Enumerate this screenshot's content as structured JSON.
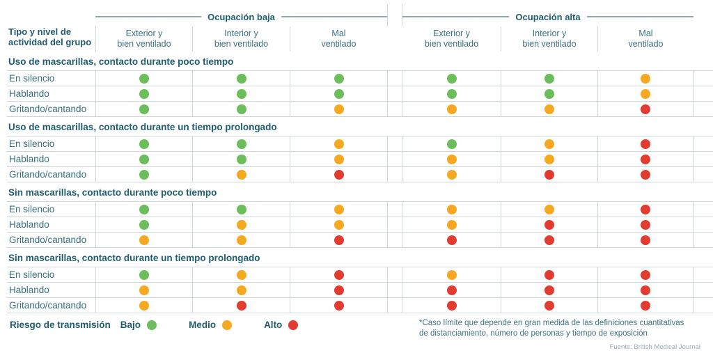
{
  "palette": {
    "teal": "#1f5d6c",
    "border": "#ccd6d8",
    "rule_line": "#8ba6ad",
    "risk": {
      "bajo": "#6bbe59",
      "medio": "#f6a820",
      "alto": "#e23b30"
    }
  },
  "header": {
    "row_header_title": "Tipo y nivel de\nactividad del grupo",
    "groups": [
      {
        "label": "Ocupación baja"
      },
      {
        "label": "Ocupación alta"
      }
    ],
    "columns": [
      "Exterior y\nbien ventilado",
      "Interior y\nbien ventilado",
      "Mal\nventilado",
      "Exterior y\nbien ventilado",
      "Interior y\nbien ventilado",
      "Mal\nventilado"
    ]
  },
  "sections": [
    {
      "title": "Uso de mascarillas, contacto durante poco tiempo",
      "rows": [
        {
          "label": "En silencio",
          "risks": [
            "bajo",
            "bajo",
            "bajo",
            "bajo",
            "bajo",
            "medio"
          ]
        },
        {
          "label": "Hablando",
          "risks": [
            "bajo",
            "bajo",
            "bajo",
            "bajo",
            "bajo",
            "medio"
          ]
        },
        {
          "label": "Gritando/cantando",
          "risks": [
            "bajo",
            "bajo",
            "medio",
            "medio",
            "medio",
            "alto"
          ]
        }
      ]
    },
    {
      "title": "Uso de mascarillas, contacto durante un tiempo prolongado",
      "rows": [
        {
          "label": "En silencio",
          "risks": [
            "bajo",
            "bajo",
            "medio",
            "bajo",
            "medio",
            "alto"
          ]
        },
        {
          "label": "Hablando",
          "risks": [
            "bajo",
            "bajo",
            "medio",
            "medio",
            "medio",
            "alto"
          ]
        },
        {
          "label": "Gritando/cantando",
          "risks": [
            "bajo",
            "medio",
            "alto",
            "medio",
            "alto",
            "alto"
          ]
        }
      ]
    },
    {
      "title": "Sin mascarillas, contacto durante poco tiempo",
      "rows": [
        {
          "label": "En silencio",
          "risks": [
            "bajo",
            "bajo",
            "medio",
            "medio",
            "medio",
            "alto"
          ]
        },
        {
          "label": "Hablando",
          "risks": [
            "bajo",
            "medio",
            "medio",
            "medio",
            "alto",
            "alto"
          ]
        },
        {
          "label": "Gritando/cantando",
          "risks": [
            "medio",
            "medio",
            "alto",
            "alto",
            "alto",
            "alto"
          ]
        }
      ]
    },
    {
      "title": "Sin mascarillas, contacto durante un tiempo prolongado",
      "rows": [
        {
          "label": "En silencio",
          "risks": [
            "bajo",
            "medio",
            "alto",
            "medio",
            "alto",
            "alto"
          ]
        },
        {
          "label": "Hablando",
          "risks": [
            "medio",
            "medio",
            "alto",
            "alto",
            "alto",
            "alto"
          ]
        },
        {
          "label": "Gritando/cantando",
          "risks": [
            "medio",
            "alto",
            "alto",
            "alto",
            "alto",
            "alto"
          ]
        }
      ]
    }
  ],
  "legend": {
    "title": "Riesgo de transmisión",
    "items": [
      {
        "label": "Bajo",
        "level": "bajo"
      },
      {
        "label": "Medio",
        "level": "medio"
      },
      {
        "label": "Alto",
        "level": "alto"
      }
    ]
  },
  "footnote": "*Caso límite que depende en gran medida de las definiciones cuantitativas\nde distanciamiento, número de personas y tiempo de exposición",
  "source": "Fuente: British Medical Journal",
  "chart_data": {
    "type": "heatmap",
    "title": "Riesgo de transmisión",
    "column_groups": [
      "Ocupación baja",
      "Ocupación alta"
    ],
    "columns": [
      "Ocupación baja · Exterior y bien ventilado",
      "Ocupación baja · Interior y bien ventilado",
      "Ocupación baja · Mal ventilado",
      "Ocupación alta · Exterior y bien ventilado",
      "Ocupación alta · Interior y bien ventilado",
      "Ocupación alta · Mal ventilado"
    ],
    "row_axis_label": "Tipo y nivel de actividad del grupo",
    "rows": [
      {
        "group": "Uso de mascarillas, contacto durante poco tiempo",
        "label": "En silencio",
        "values": [
          "bajo",
          "bajo",
          "bajo",
          "bajo",
          "bajo",
          "medio"
        ]
      },
      {
        "group": "Uso de mascarillas, contacto durante poco tiempo",
        "label": "Hablando",
        "values": [
          "bajo",
          "bajo",
          "bajo",
          "bajo",
          "bajo",
          "medio"
        ]
      },
      {
        "group": "Uso de mascarillas, contacto durante poco tiempo",
        "label": "Gritando/cantando",
        "values": [
          "bajo",
          "bajo",
          "medio",
          "medio",
          "medio",
          "alto"
        ]
      },
      {
        "group": "Uso de mascarillas, contacto durante un tiempo prolongado",
        "label": "En silencio",
        "values": [
          "bajo",
          "bajo",
          "medio",
          "bajo",
          "medio",
          "alto"
        ]
      },
      {
        "group": "Uso de mascarillas, contacto durante un tiempo prolongado",
        "label": "Hablando",
        "values": [
          "bajo",
          "bajo",
          "medio",
          "medio",
          "medio",
          "alto"
        ]
      },
      {
        "group": "Uso de mascarillas, contacto durante un tiempo prolongado",
        "label": "Gritando/cantando",
        "values": [
          "bajo",
          "medio",
          "alto",
          "medio",
          "alto",
          "alto"
        ]
      },
      {
        "group": "Sin mascarillas, contacto durante poco tiempo",
        "label": "En silencio",
        "values": [
          "bajo",
          "bajo",
          "medio",
          "medio",
          "medio",
          "alto"
        ]
      },
      {
        "group": "Sin mascarillas, contacto durante poco tiempo",
        "label": "Hablando",
        "values": [
          "bajo",
          "medio",
          "medio",
          "medio",
          "alto",
          "alto"
        ]
      },
      {
        "group": "Sin mascarillas, contacto durante poco tiempo",
        "label": "Gritando/cantando",
        "values": [
          "medio",
          "medio",
          "alto",
          "alto",
          "alto",
          "alto"
        ]
      },
      {
        "group": "Sin mascarillas, contacto durante un tiempo prolongado",
        "label": "En silencio",
        "values": [
          "bajo",
          "medio",
          "alto",
          "medio",
          "alto",
          "alto"
        ]
      },
      {
        "group": "Sin mascarillas, contacto durante un tiempo prolongado",
        "label": "Hablando",
        "values": [
          "medio",
          "medio",
          "alto",
          "alto",
          "alto",
          "alto"
        ]
      },
      {
        "group": "Sin mascarillas, contacto durante un tiempo prolongado",
        "label": "Gritando/cantando",
        "values": [
          "medio",
          "alto",
          "alto",
          "alto",
          "alto",
          "alto"
        ]
      }
    ],
    "legend": {
      "bajo": "Riesgo bajo (verde)",
      "medio": "Riesgo medio (ámbar)",
      "alto": "Riesgo alto (rojo)"
    },
    "level_colors": {
      "bajo": "#6bbe59",
      "medio": "#f6a820",
      "alto": "#e23b30"
    }
  }
}
